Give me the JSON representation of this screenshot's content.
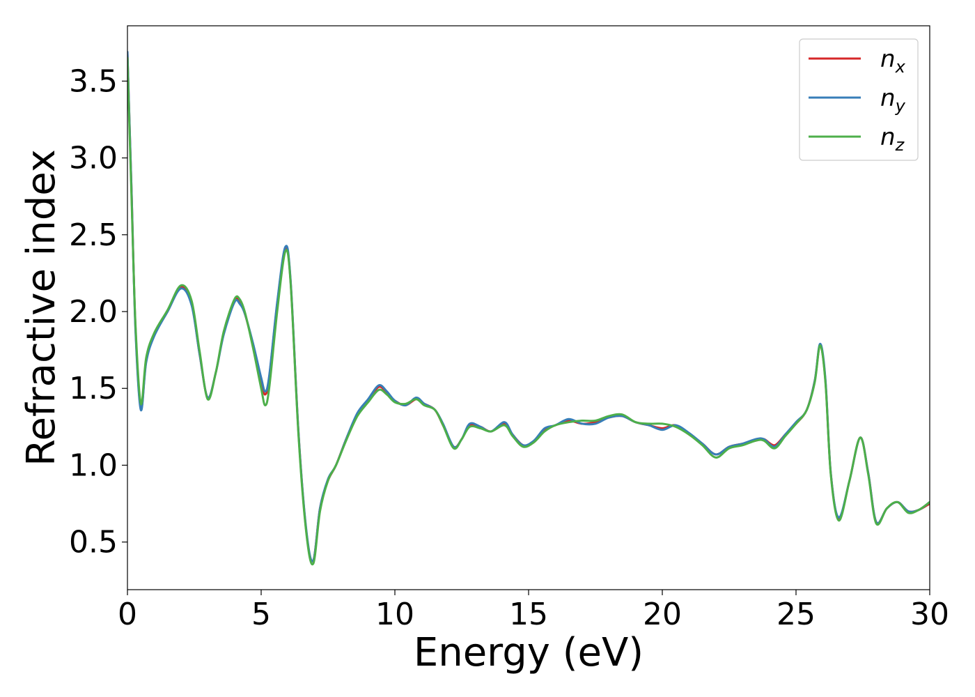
{
  "chart_data": {
    "type": "line",
    "xlabel": "Energy (eV)",
    "ylabel": "Refractive index",
    "xlim": [
      0,
      30
    ],
    "ylim": [
      0.19,
      3.86
    ],
    "xticks": [
      0,
      5,
      10,
      15,
      20,
      25,
      30
    ],
    "yticks": [
      0.5,
      1.0,
      1.5,
      2.0,
      2.5,
      3.0,
      3.5
    ],
    "xtick_labels": [
      "0",
      "5",
      "10",
      "15",
      "20",
      "25",
      "30"
    ],
    "ytick_labels": [
      "0.5",
      "1.0",
      "1.5",
      "2.0",
      "2.5",
      "3.0",
      "3.5"
    ],
    "grid": false,
    "legend_position": "top-right",
    "series": [
      {
        "name": "n_x",
        "label_base": "n",
        "label_sub": "x",
        "color": "#d62728",
        "x": [
          0,
          0.15,
          0.3,
          0.5,
          0.7,
          1.0,
          1.5,
          2.0,
          2.4,
          2.7,
          3.0,
          3.3,
          3.6,
          4.0,
          4.2,
          4.4,
          4.7,
          5.0,
          5.15,
          5.3,
          5.6,
          5.9,
          6.1,
          6.4,
          6.7,
          6.95,
          7.2,
          7.5,
          7.8,
          8.2,
          8.6,
          9.0,
          9.4,
          9.7,
          10.0,
          10.4,
          10.8,
          11.1,
          11.5,
          11.8,
          12.2,
          12.5,
          12.8,
          13.2,
          13.6,
          14.1,
          14.4,
          14.8,
          15.2,
          15.6,
          16.0,
          16.5,
          17.0,
          17.5,
          18.0,
          18.5,
          19.0,
          19.5,
          20.0,
          20.5,
          21.0,
          21.5,
          22.0,
          22.5,
          23.0,
          23.5,
          23.8,
          24.2,
          24.6,
          25.0,
          25.4,
          25.7,
          25.9,
          26.1,
          26.3,
          26.6,
          27.0,
          27.4,
          27.7,
          28.0,
          28.4,
          28.8,
          29.2,
          29.6,
          30.0
        ],
        "y": [
          3.68,
          2.8,
          1.9,
          1.37,
          1.68,
          1.85,
          2.0,
          2.16,
          2.05,
          1.72,
          1.44,
          1.6,
          1.86,
          2.07,
          2.06,
          1.98,
          1.78,
          1.55,
          1.46,
          1.57,
          2.05,
          2.41,
          2.2,
          1.2,
          0.55,
          0.38,
          0.72,
          0.9,
          1.0,
          1.18,
          1.33,
          1.42,
          1.51,
          1.47,
          1.42,
          1.39,
          1.43,
          1.4,
          1.36,
          1.26,
          1.12,
          1.17,
          1.26,
          1.25,
          1.22,
          1.27,
          1.2,
          1.13,
          1.15,
          1.23,
          1.26,
          1.29,
          1.27,
          1.28,
          1.31,
          1.32,
          1.28,
          1.26,
          1.24,
          1.26,
          1.2,
          1.14,
          1.07,
          1.12,
          1.14,
          1.16,
          1.17,
          1.13,
          1.2,
          1.27,
          1.36,
          1.55,
          1.78,
          1.55,
          0.95,
          0.65,
          0.9,
          1.18,
          0.95,
          0.63,
          0.72,
          0.76,
          0.7,
          0.71,
          0.75
        ]
      },
      {
        "name": "n_y",
        "label_base": "n",
        "label_sub": "y",
        "color": "#377eb8",
        "x": [
          0,
          0.15,
          0.3,
          0.5,
          0.7,
          1.0,
          1.5,
          2.0,
          2.4,
          2.7,
          3.0,
          3.3,
          3.6,
          4.0,
          4.2,
          4.4,
          4.7,
          5.0,
          5.15,
          5.3,
          5.6,
          5.9,
          6.1,
          6.4,
          6.7,
          6.95,
          7.2,
          7.5,
          7.8,
          8.2,
          8.6,
          9.0,
          9.4,
          9.7,
          10.0,
          10.4,
          10.8,
          11.1,
          11.5,
          11.8,
          12.2,
          12.5,
          12.8,
          13.2,
          13.6,
          14.1,
          14.4,
          14.8,
          15.2,
          15.6,
          16.0,
          16.5,
          17.0,
          17.5,
          18.0,
          18.5,
          19.0,
          19.5,
          20.0,
          20.5,
          21.0,
          21.5,
          22.0,
          22.5,
          23.0,
          23.5,
          23.8,
          24.2,
          24.6,
          25.0,
          25.4,
          25.7,
          25.9,
          26.1,
          26.3,
          26.6,
          27.0,
          27.4,
          27.7,
          28.0,
          28.4,
          28.8,
          29.2,
          29.6,
          30.0
        ],
        "y": [
          3.69,
          2.8,
          1.88,
          1.36,
          1.67,
          1.84,
          2.0,
          2.15,
          2.04,
          1.72,
          1.44,
          1.6,
          1.85,
          2.06,
          2.05,
          1.98,
          1.79,
          1.57,
          1.48,
          1.58,
          2.06,
          2.42,
          2.21,
          1.2,
          0.56,
          0.38,
          0.72,
          0.91,
          1.0,
          1.18,
          1.34,
          1.43,
          1.52,
          1.48,
          1.42,
          1.39,
          1.44,
          1.4,
          1.36,
          1.27,
          1.12,
          1.17,
          1.27,
          1.25,
          1.22,
          1.28,
          1.2,
          1.13,
          1.16,
          1.24,
          1.26,
          1.3,
          1.27,
          1.27,
          1.31,
          1.32,
          1.28,
          1.26,
          1.23,
          1.26,
          1.21,
          1.14,
          1.07,
          1.12,
          1.14,
          1.17,
          1.17,
          1.12,
          1.2,
          1.28,
          1.36,
          1.55,
          1.79,
          1.56,
          0.95,
          0.66,
          0.9,
          1.18,
          0.95,
          0.63,
          0.72,
          0.76,
          0.7,
          0.71,
          0.76
        ]
      },
      {
        "name": "n_z",
        "label_base": "n",
        "label_sub": "z",
        "color": "#4daf4a",
        "x": [
          0,
          0.15,
          0.3,
          0.5,
          0.7,
          1.0,
          1.5,
          2.0,
          2.4,
          2.7,
          3.0,
          3.3,
          3.6,
          4.0,
          4.2,
          4.4,
          4.7,
          5.0,
          5.15,
          5.3,
          5.6,
          5.9,
          6.1,
          6.4,
          6.7,
          6.95,
          7.2,
          7.5,
          7.8,
          8.2,
          8.6,
          9.0,
          9.4,
          9.7,
          10.0,
          10.4,
          10.8,
          11.1,
          11.5,
          11.8,
          12.2,
          12.5,
          12.8,
          13.2,
          13.6,
          14.1,
          14.4,
          14.8,
          15.2,
          15.6,
          16.0,
          16.5,
          17.0,
          17.5,
          18.0,
          18.5,
          19.0,
          19.5,
          20.0,
          20.5,
          21.0,
          21.5,
          22.0,
          22.5,
          23.0,
          23.5,
          23.8,
          24.2,
          24.6,
          25.0,
          25.4,
          25.7,
          25.9,
          26.1,
          26.3,
          26.6,
          27.0,
          27.4,
          27.7,
          28.0,
          28.4,
          28.8,
          29.2,
          29.6,
          30.0
        ],
        "y": [
          3.65,
          2.75,
          1.92,
          1.4,
          1.7,
          1.86,
          2.01,
          2.17,
          2.07,
          1.74,
          1.43,
          1.6,
          1.87,
          2.08,
          2.08,
          1.99,
          1.76,
          1.5,
          1.39,
          1.5,
          2.0,
          2.39,
          2.19,
          1.18,
          0.54,
          0.36,
          0.7,
          0.9,
          1.0,
          1.17,
          1.32,
          1.41,
          1.49,
          1.46,
          1.41,
          1.4,
          1.43,
          1.39,
          1.36,
          1.26,
          1.11,
          1.17,
          1.25,
          1.24,
          1.22,
          1.26,
          1.19,
          1.12,
          1.15,
          1.22,
          1.26,
          1.28,
          1.29,
          1.29,
          1.32,
          1.33,
          1.28,
          1.27,
          1.27,
          1.25,
          1.2,
          1.13,
          1.05,
          1.11,
          1.13,
          1.16,
          1.16,
          1.11,
          1.19,
          1.27,
          1.36,
          1.54,
          1.78,
          1.54,
          0.94,
          0.64,
          0.9,
          1.18,
          0.94,
          0.62,
          0.72,
          0.76,
          0.69,
          0.71,
          0.76
        ]
      }
    ]
  }
}
